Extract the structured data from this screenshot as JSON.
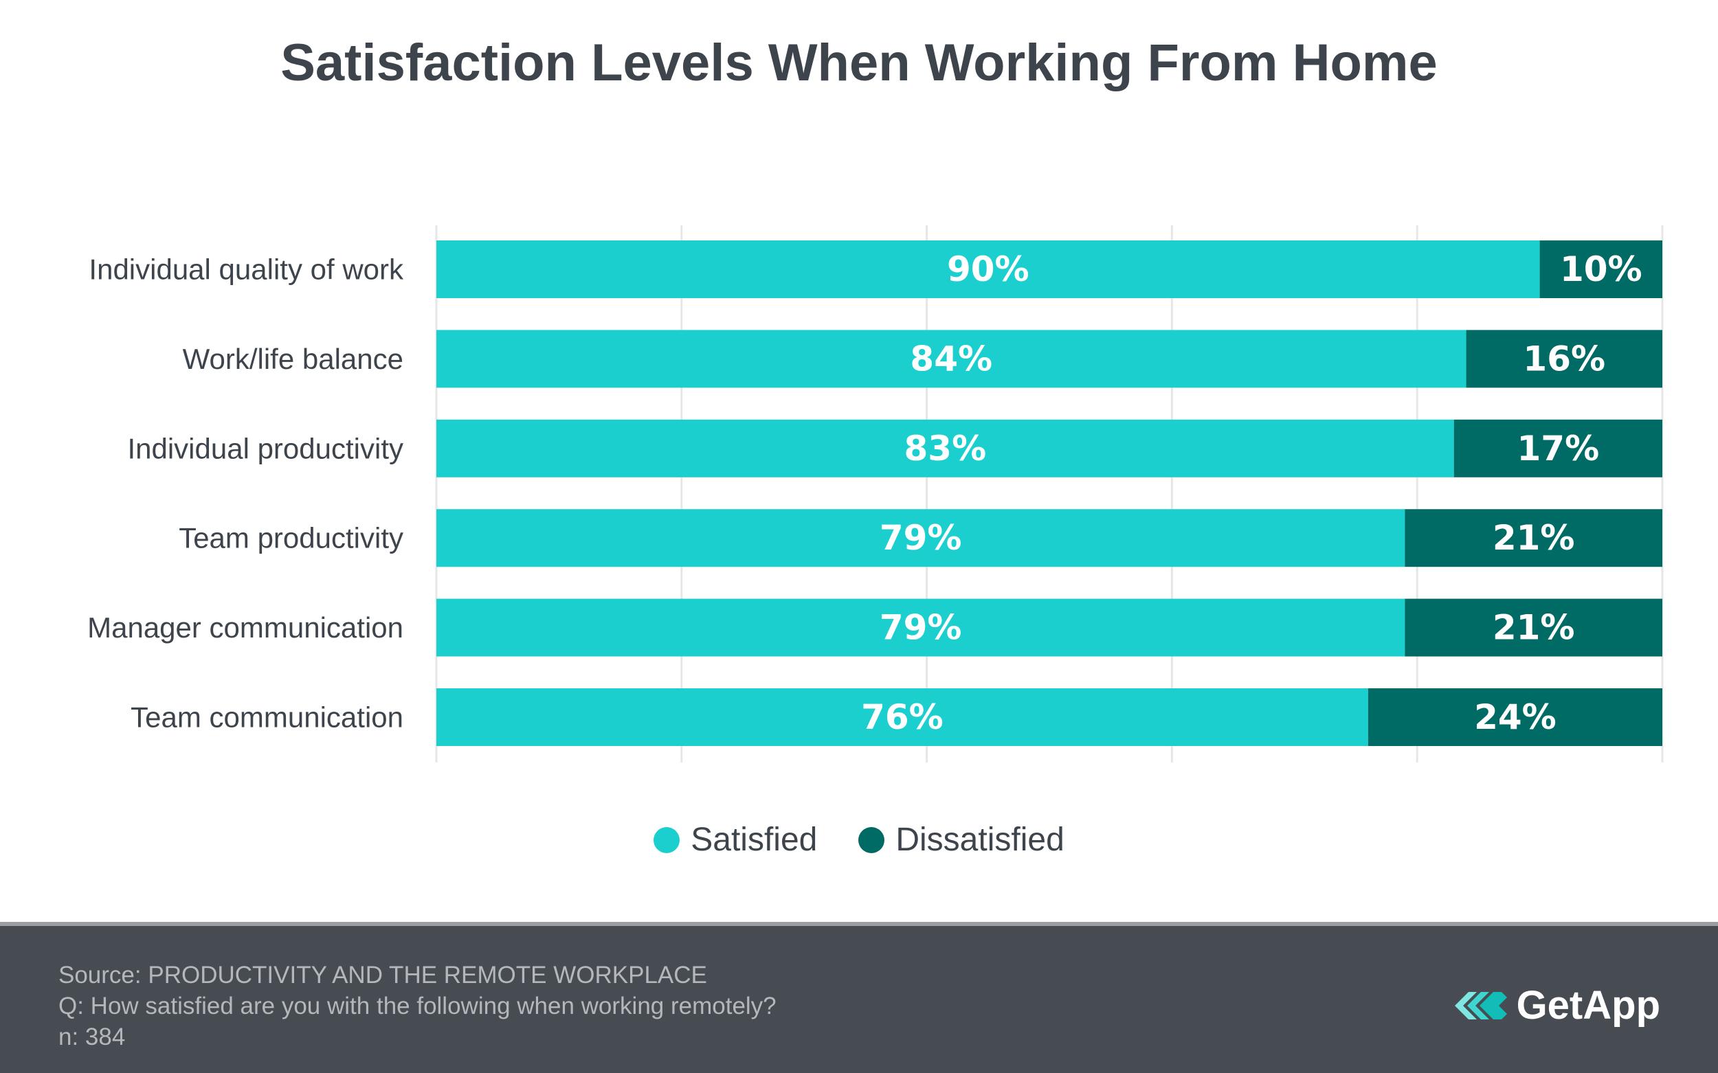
{
  "chart_data": {
    "type": "bar",
    "orientation": "horizontal",
    "stacked": true,
    "title": "Satisfaction Levels When Working From Home",
    "categories": [
      "Individual quality of work",
      "Work/life balance",
      "Individual productivity",
      "Team productivity",
      "Manager communication",
      "Team communication"
    ],
    "series": [
      {
        "name": "Satisfied",
        "values": [
          90,
          84,
          83,
          79,
          79,
          76
        ],
        "labels": [
          "90%",
          "84%",
          "83%",
          "79%",
          "79%",
          "76%"
        ],
        "color": "#1bcfcf"
      },
      {
        "name": "Dissatisfied",
        "values": [
          10,
          16,
          17,
          21,
          21,
          24
        ],
        "labels": [
          "10%",
          "16%",
          "17%",
          "21%",
          "21%",
          "24%"
        ],
        "color": "#006a64"
      }
    ],
    "xlim": [
      0,
      100
    ],
    "grid": true,
    "legend_position": "bottom"
  },
  "footer": {
    "source": "Source: PRODUCTIVITY AND THE REMOTE WORKPLACE",
    "question": "Q: How satisfied are you with the following when working remotely?",
    "n": "n: 384",
    "logo_text": "GetApp"
  },
  "colors": {
    "satisfied": "#1bcfcf",
    "dissatisfied": "#006a64",
    "footer_bg": "#474c53",
    "text": "#3e444c"
  },
  "logo_icon": "getapp-logo-icon"
}
